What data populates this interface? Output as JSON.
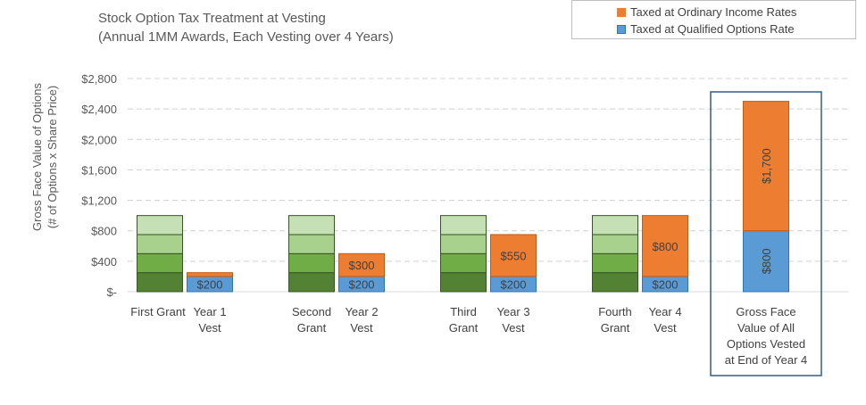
{
  "chart_data": {
    "type": "bar",
    "title": "Stock Option Tax Treatment at Vesting",
    "subtitle": "(Annual 1MM Awards, Each Vesting over 4 Years)",
    "ylabel_lines": [
      "Gross Face Value of Options",
      "(# of Options x Share Price)"
    ],
    "y_ticks": [
      "$2,800",
      "$2,400",
      "$2,000",
      "$1,600",
      "$1,200",
      "$800",
      "$400",
      "$-"
    ],
    "y_tick_values": [
      2800,
      2400,
      2000,
      1600,
      1200,
      800,
      400,
      0
    ],
    "ylim": [
      0,
      2800
    ],
    "grid": true,
    "legend": [
      {
        "name": "Taxed at Ordinary Income Rates",
        "color": "#ed7d31"
      },
      {
        "name": "Taxed at Qualified Options Rate",
        "color": "#5b9bd5"
      }
    ],
    "colors": {
      "grant_dark": "#548235",
      "grant_mid": "#70ad47",
      "grant_light1": "#a9d18e",
      "grant_light2": "#c5e0b4",
      "ordinary": "#ed7d31",
      "qualified": "#5b9bd5",
      "highlight_border": "#2e5f8a"
    },
    "categories": [
      {
        "label_lines": [
          "First Grant"
        ],
        "kind": "grant",
        "values": [
          250,
          250,
          250,
          250
        ]
      },
      {
        "label_lines": [
          "Year 1",
          "Vest"
        ],
        "kind": "vest",
        "qualified": 200,
        "ordinary": 50,
        "qualified_label": "$200",
        "ordinary_label": ""
      },
      {
        "label_lines": [
          "Second",
          "Grant"
        ],
        "kind": "grant",
        "values": [
          250,
          250,
          250,
          250
        ]
      },
      {
        "label_lines": [
          "Year 2",
          "Vest"
        ],
        "kind": "vest",
        "qualified": 200,
        "ordinary": 300,
        "qualified_label": "$200",
        "ordinary_label": "$300"
      },
      {
        "label_lines": [
          "Third",
          "Grant"
        ],
        "kind": "grant",
        "values": [
          250,
          250,
          250,
          250
        ]
      },
      {
        "label_lines": [
          "Year 3",
          "Vest"
        ],
        "kind": "vest",
        "qualified": 200,
        "ordinary": 550,
        "qualified_label": "$200",
        "ordinary_label": "$550"
      },
      {
        "label_lines": [
          "Fourth",
          "Grant"
        ],
        "kind": "grant",
        "values": [
          250,
          250,
          250,
          250
        ]
      },
      {
        "label_lines": [
          "Year 4",
          "Vest"
        ],
        "kind": "vest",
        "qualified": 200,
        "ordinary": 800,
        "qualified_label": "$200",
        "ordinary_label": "$800"
      },
      {
        "label_lines": [
          "Gross Face",
          "Value of All",
          "Options Vested",
          "at End of Year 4"
        ],
        "kind": "total",
        "qualified": 800,
        "ordinary": 1700,
        "qualified_label": "$800",
        "ordinary_label": "$1,700"
      }
    ]
  }
}
